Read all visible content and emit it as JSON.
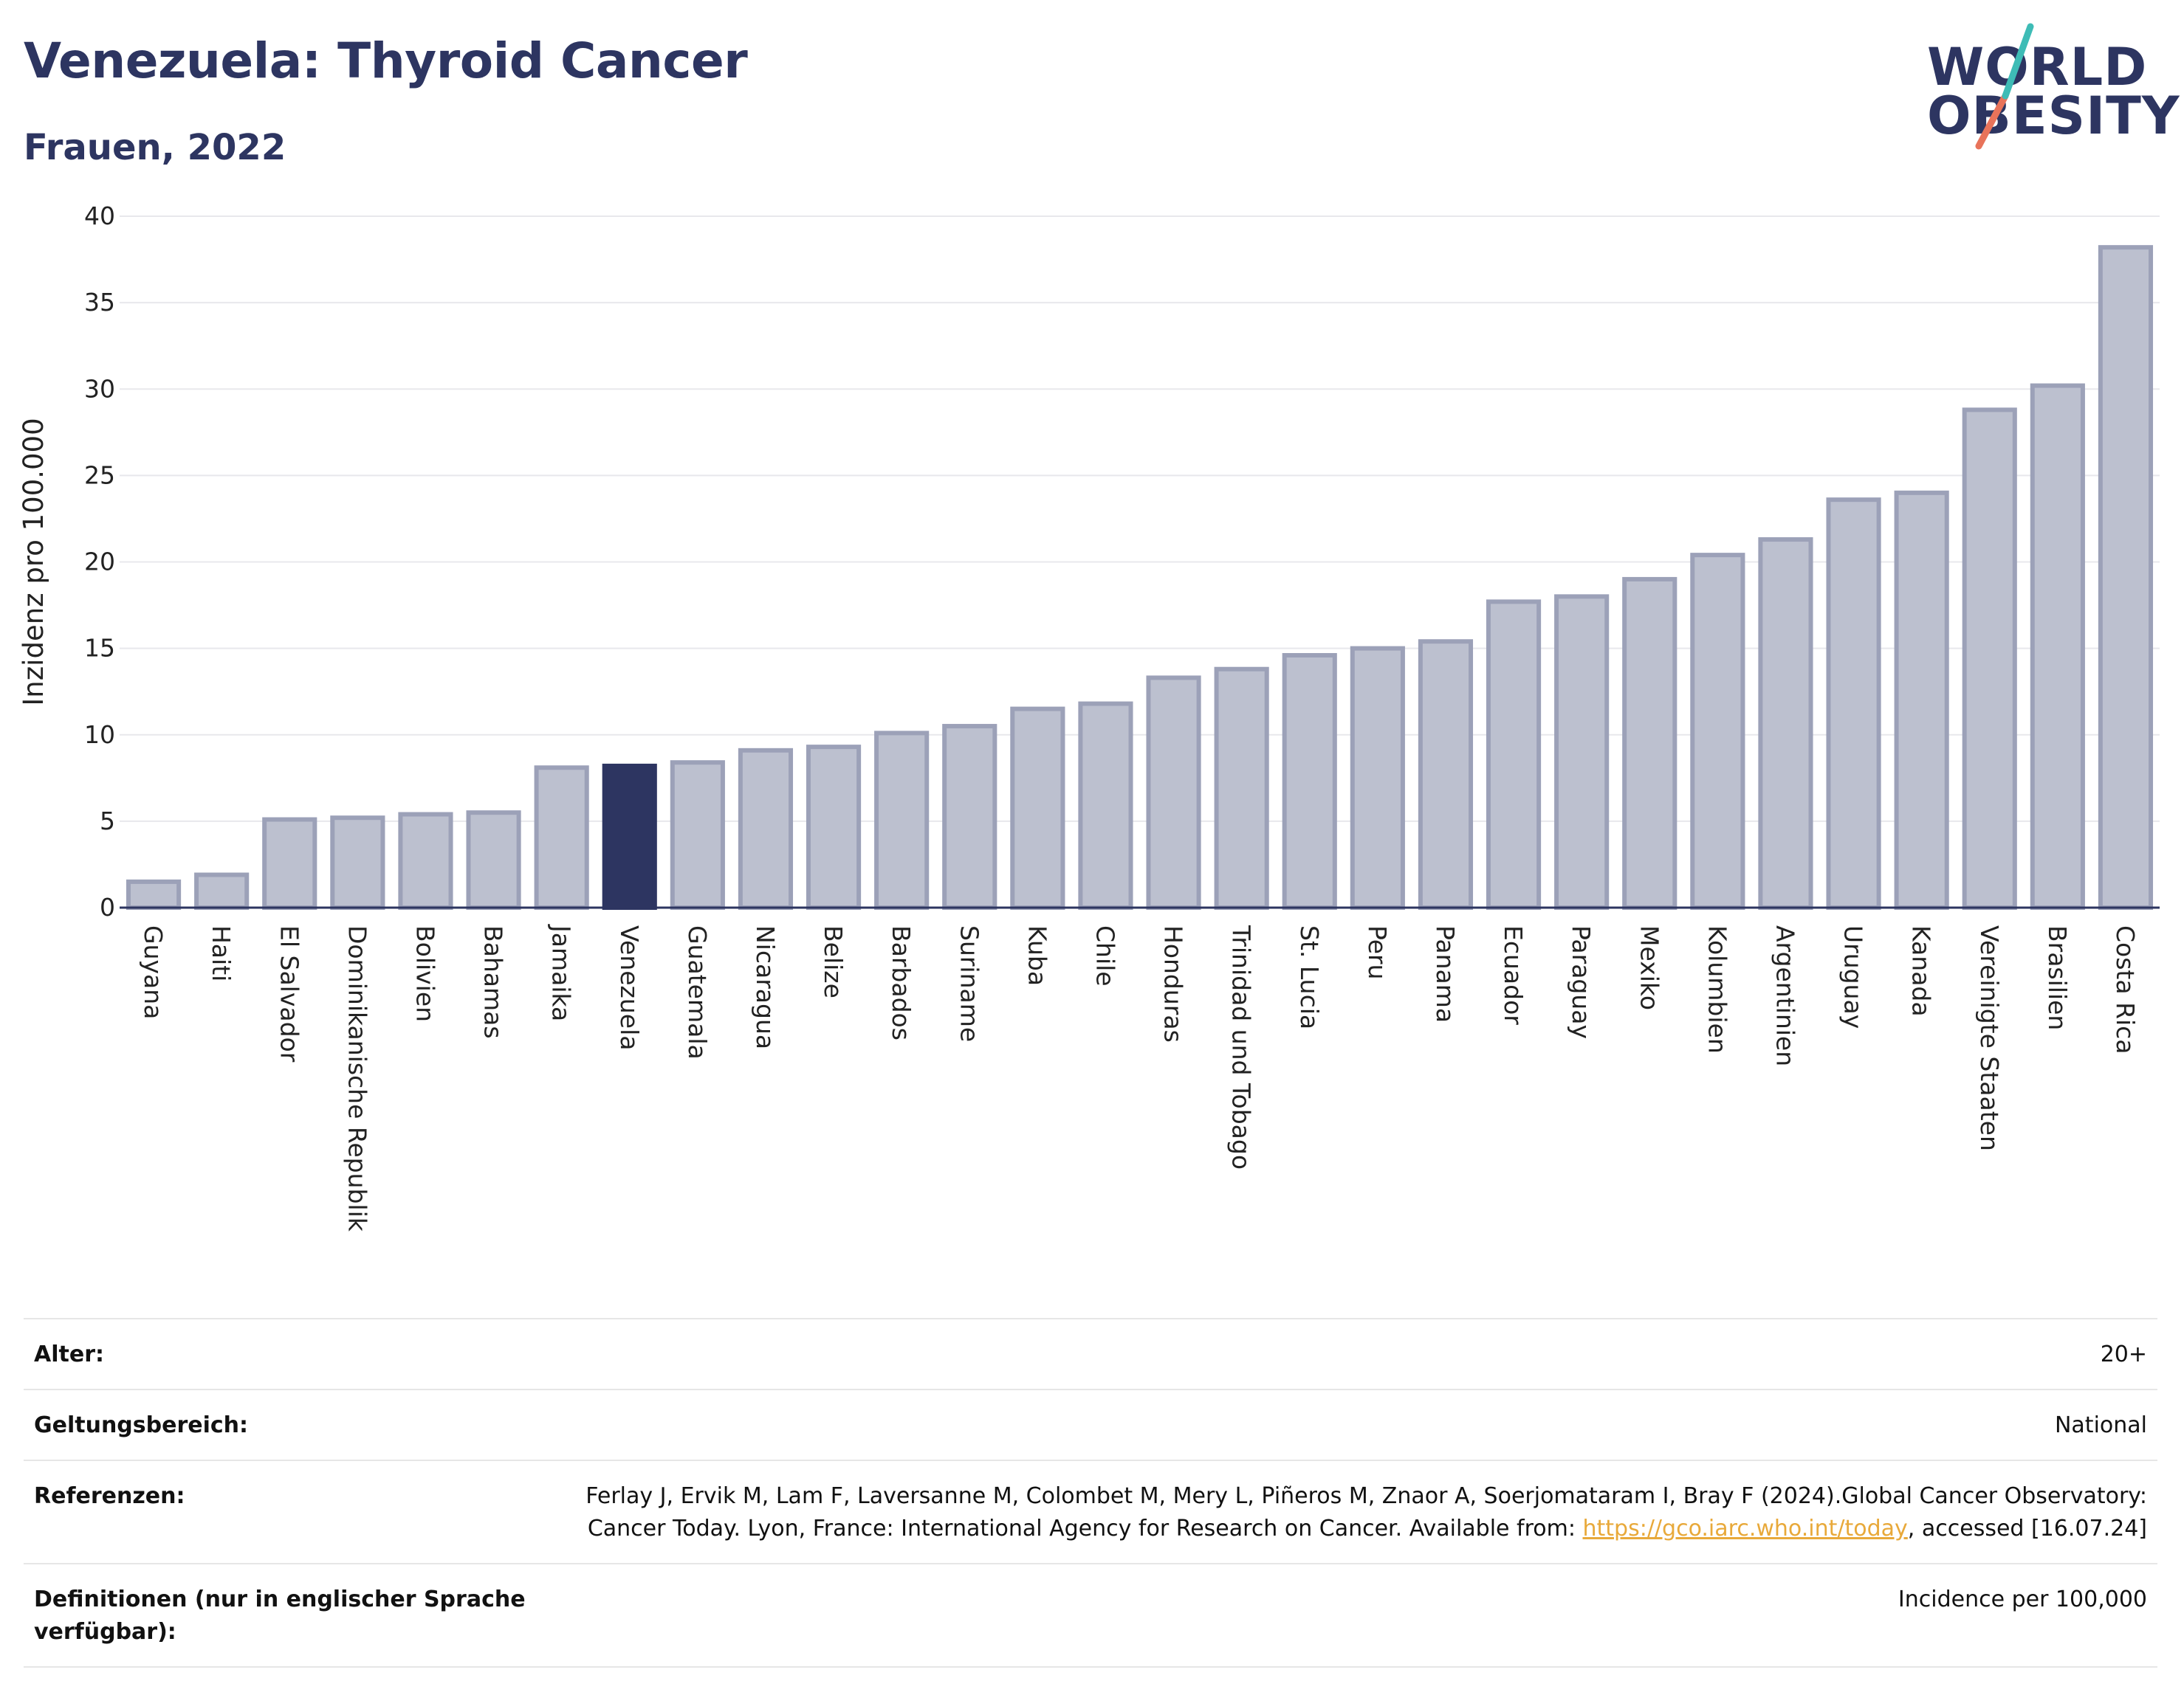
{
  "header": {
    "title": "Venezuela: Thyroid Cancer",
    "subtitle": "Frauen, 2022"
  },
  "logo": {
    "line1": "WORLD",
    "line2": "OBESITY"
  },
  "colors": {
    "bar": "#bcc0cf",
    "bar_border": "#9ca1b8",
    "highlight": "#2d3561",
    "grid": "#e8e8ec",
    "logo_teal": "#3ebcb6",
    "logo_coral": "#e8735a",
    "link": "#e8a93a"
  },
  "chart_data": {
    "type": "bar",
    "ylabel": "Inzidenz pro 100.000",
    "ylim": [
      0,
      40
    ],
    "yticks": [
      0,
      5,
      10,
      15,
      20,
      25,
      30,
      35,
      40
    ],
    "grid": true,
    "highlight": "Venezuela",
    "categories": [
      "Guyana",
      "Haiti",
      "El Salvador",
      "Dominikanische Republik",
      "Bolivien",
      "Bahamas",
      "Jamaika",
      "Venezuela",
      "Guatemala",
      "Nicaragua",
      "Belize",
      "Barbados",
      "Suriname",
      "Kuba",
      "Chile",
      "Honduras",
      "Trinidad und Tobago",
      "St. Lucia",
      "Peru",
      "Panama",
      "Ecuador",
      "Paraguay",
      "Mexiko",
      "Kolumbien",
      "Argentinien",
      "Uruguay",
      "Kanada",
      "Vereinigte Staaten",
      "Brasilien",
      "Costa Rica"
    ],
    "values": [
      1.5,
      1.9,
      5.1,
      5.2,
      5.4,
      5.5,
      8.1,
      8.2,
      8.4,
      9.1,
      9.3,
      10.1,
      10.5,
      11.5,
      11.8,
      13.3,
      13.8,
      14.6,
      15.0,
      15.4,
      17.7,
      18.0,
      19.0,
      20.4,
      21.3,
      23.6,
      24.0,
      28.8,
      30.2,
      38.2
    ]
  },
  "info": {
    "age_label": "Alter:",
    "age_value": "20+",
    "scope_label": "Geltungsbereich:",
    "scope_value": "National",
    "ref_label": "Referenzen:",
    "ref_text1": "Ferlay J, Ervik M, Lam F, Laversanne M, Colombet M, Mery L, Piñeros M, Znaor A, Soerjomataram I, Bray F (2024).Global Cancer Observatory: Cancer Today. Lyon, France: International Agency for Research on Cancer. Available from: ",
    "ref_link": "https://gco.iarc.who.int/today",
    "ref_text2": ", accessed [16.07.24]",
    "def_label": "Definitionen (nur in englischer Sprache verfügbar):",
    "def_value": "Incidence per 100,000"
  }
}
